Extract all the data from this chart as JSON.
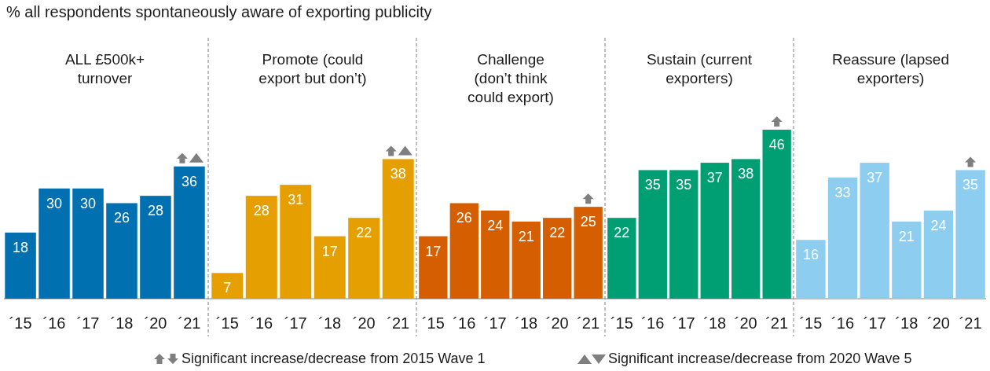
{
  "chart_data": [
    {
      "type": "bar",
      "title": "ALL £500k+\nturnover",
      "categories": [
        "´15",
        "´16",
        "´17",
        "´18",
        "´20",
        "´21"
      ],
      "values": [
        18,
        30,
        30,
        26,
        28,
        36
      ],
      "color": "#0070b0",
      "data_labels": true,
      "annotations": [
        "% all respondents spontaneously aware of exporting publicity",
        "Significant increase/decrease from 2015 Wave 1",
        "Significant increase/decrease from 2020 Wave 5"
      ]
    },
    {
      "type": "bar",
      "title": "Promote (could\nexport but don’t)",
      "categories": [
        "´15",
        "´16",
        "´17",
        "´18",
        "´20",
        "´21"
      ],
      "values": [
        7,
        28,
        31,
        17,
        22,
        38
      ],
      "color": "#e69f00",
      "data_labels": true
    },
    {
      "type": "bar",
      "title": "Challenge\n(don’t think\ncould export)",
      "categories": [
        "´15",
        "´16",
        "´17",
        "´18",
        "´20",
        "´21"
      ],
      "values": [
        17,
        26,
        24,
        21,
        22,
        25
      ],
      "color": "#d55e00",
      "data_labels": true
    },
    {
      "type": "bar",
      "title": "Sustain (current\nexporters)",
      "categories": [
        "´15",
        "´16",
        "´17",
        "´18",
        "´20",
        "´21"
      ],
      "values": [
        22,
        35,
        35,
        37,
        38,
        46
      ],
      "color": "#009e73",
      "data_labels": true
    },
    {
      "type": "bar",
      "title": "Reassure (lapsed\nexporters)",
      "categories": [
        "´15",
        "´16",
        "´17",
        "´18",
        "´20",
        "´21"
      ],
      "values": [
        16,
        33,
        37,
        21,
        24,
        35
      ],
      "color": "#8ccdf0",
      "data_labels": true
    }
  ]
}
